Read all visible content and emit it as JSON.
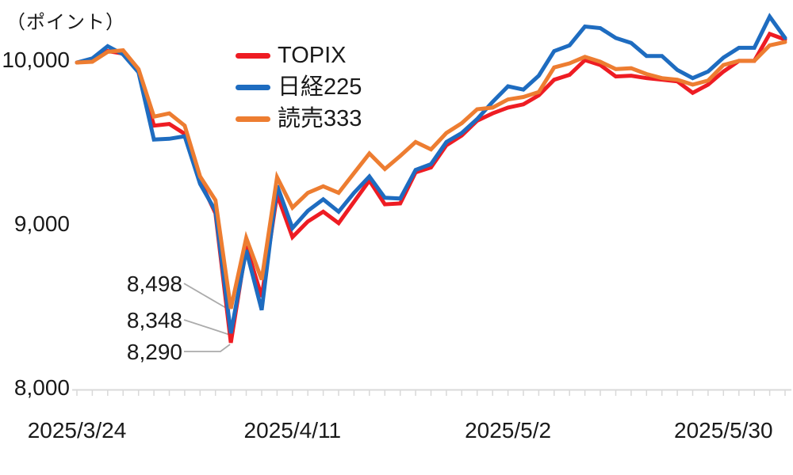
{
  "title_unit": "（ポイント）",
  "colors": {
    "topix": "#ee1c23",
    "nikkei225": "#1e6cc0",
    "yomiuri333": "#ed7d31",
    "axis": "#d9d9d9",
    "leader": "#ababab",
    "text": "#1a1a1a"
  },
  "legend": [
    {
      "label": "TOPIX"
    },
    {
      "label": "日経225"
    },
    {
      "label": "読売333"
    }
  ],
  "chart_data": {
    "type": "line",
    "title": "",
    "ylabel_unit": "（ポイント）",
    "ylim": [
      8000,
      10350
    ],
    "grid": false,
    "legend_position": "top-center",
    "n_points": 47,
    "x_labels": [
      {
        "index": 0,
        "label": "2025/3/24"
      },
      {
        "index": 14,
        "label": "2025/4/11"
      },
      {
        "index": 28,
        "label": "2025/5/2"
      },
      {
        "index": 42,
        "label": "2025/5/30"
      }
    ],
    "y_ticks": [
      {
        "value": 10000,
        "label": "10,000"
      },
      {
        "value": 9000,
        "label": "9,000"
      },
      {
        "value": 8000,
        "label": "8,000"
      }
    ],
    "series": [
      {
        "name": "TOPIX",
        "color": "#ee1c23",
        "values": [
          10000,
          10015,
          10070,
          10055,
          9950,
          9615,
          9625,
          9565,
          9280,
          9080,
          8290,
          8880,
          8570,
          9195,
          8935,
          9030,
          9090,
          9020,
          9150,
          9280,
          9135,
          9140,
          9330,
          9360,
          9495,
          9555,
          9645,
          9690,
          9725,
          9745,
          9800,
          9895,
          9925,
          10015,
          9985,
          9915,
          9920,
          9905,
          9895,
          9885,
          9815,
          9865,
          9945,
          10010,
          10010,
          10175,
          10140
        ]
      },
      {
        "name": "日経225",
        "color": "#1e6cc0",
        "values": [
          10000,
          10025,
          10100,
          10050,
          9940,
          9530,
          9535,
          9550,
          9260,
          9095,
          8348,
          8855,
          8490,
          9250,
          8990,
          9095,
          9165,
          9090,
          9205,
          9305,
          9175,
          9170,
          9345,
          9380,
          9515,
          9570,
          9655,
          9760,
          9855,
          9835,
          9920,
          10070,
          10105,
          10220,
          10210,
          10150,
          10120,
          10040,
          10040,
          9955,
          9905,
          9945,
          10030,
          10090,
          10090,
          10280,
          10150
        ]
      },
      {
        "name": "読売333",
        "color": "#ed7d31",
        "values": [
          10000,
          10005,
          10065,
          10075,
          9960,
          9670,
          9690,
          9615,
          9305,
          9160,
          8498,
          8930,
          8675,
          9300,
          9115,
          9205,
          9245,
          9205,
          9325,
          9445,
          9350,
          9430,
          9515,
          9470,
          9570,
          9630,
          9715,
          9725,
          9775,
          9790,
          9820,
          9970,
          9995,
          10035,
          10005,
          9960,
          9965,
          9930,
          9905,
          9895,
          9865,
          9890,
          9985,
          10010,
          10010,
          10105,
          10125
        ]
      }
    ],
    "annotations": [
      {
        "label": "8,498",
        "series": "読売333",
        "point_index": 10,
        "value": 8498
      },
      {
        "label": "8,348",
        "series": "日経225",
        "point_index": 10,
        "value": 8348
      },
      {
        "label": "8,290",
        "series": "TOPIX",
        "point_index": 10,
        "value": 8290
      }
    ]
  }
}
